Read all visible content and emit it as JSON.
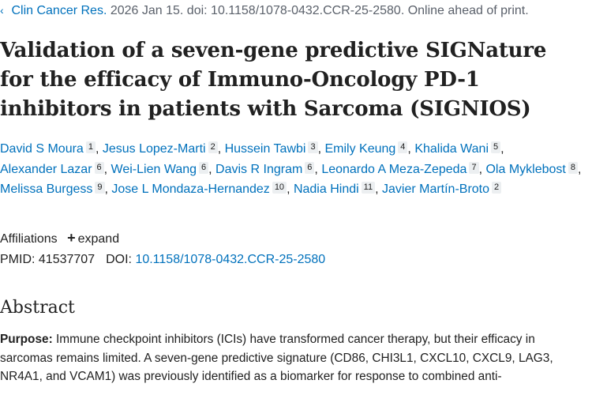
{
  "citation": {
    "arrow_icon": "chevron-left-icon",
    "journal": "Clin Cancer Res.",
    "rest": " 2026 Jan 15. doi: 10.1158/1078-0432.CCR-25-2580. Online ahead of print."
  },
  "title": "Validation of a seven-gene predictive SIGNature for the efficacy of Immuno-Oncology PD-1 inhibitors in patients with Sarcoma (SIGNIOS)",
  "authors": [
    {
      "name": "David S Moura",
      "aff": "1"
    },
    {
      "name": "Jesus Lopez-Marti",
      "aff": "2"
    },
    {
      "name": "Hussein Tawbi",
      "aff": "3"
    },
    {
      "name": "Emily Keung",
      "aff": "4"
    },
    {
      "name": "Khalida Wani",
      "aff": "5"
    },
    {
      "name": "Alexander Lazar",
      "aff": "6"
    },
    {
      "name": "Wei-Lien Wang",
      "aff": "6"
    },
    {
      "name": "Davis R Ingram",
      "aff": "6"
    },
    {
      "name": "Leonardo A Meza-Zepeda",
      "aff": "7"
    },
    {
      "name": "Ola Myklebost",
      "aff": "8"
    },
    {
      "name": "Melissa Burgess",
      "aff": "9"
    },
    {
      "name": "Jose L Mondaza-Hernandez",
      "aff": "10"
    },
    {
      "name": "Nadia Hindi",
      "aff": "11"
    },
    {
      "name": "Javier Martín-Broto",
      "aff": "2"
    }
  ],
  "affiliations": {
    "label": "Affiliations",
    "expand_label": "expand",
    "expand_icon": "plus-icon"
  },
  "ids": {
    "pmid_label": "PMID:",
    "pmid": "41537707",
    "doi_label": "DOI:",
    "doi": "10.1158/1078-0432.CCR-25-2580"
  },
  "abstract": {
    "heading": "Abstract",
    "purpose_label": "Purpose:",
    "purpose_text": " Immune checkpoint inhibitors (ICIs) have transformed cancer therapy, but their efficacy in sarcomas remains limited. A seven-gene predictive signature (CD86, CHI3L1, CXCL10, CXCL9, LAG3, NR4A1, and VCAM1) was previously identified as a biomarker for response to combined anti-"
  }
}
